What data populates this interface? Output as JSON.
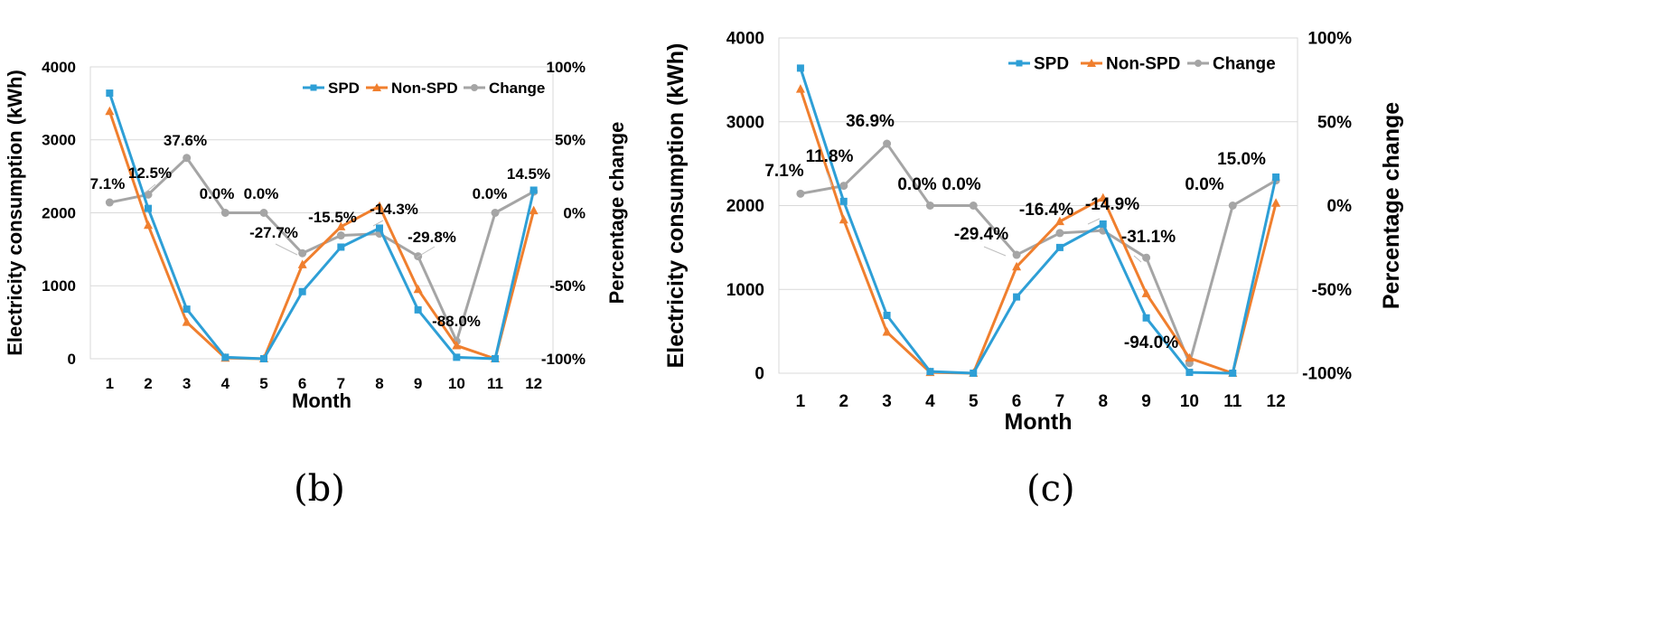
{
  "chart_data": [
    {
      "type": "line",
      "panel_label": "(b)",
      "categories": [
        "1",
        "2",
        "3",
        "4",
        "5",
        "6",
        "7",
        "8",
        "9",
        "10",
        "11",
        "12"
      ],
      "xlabel": "Month",
      "ylabel": "Electricity consumption (kWh)",
      "ylabel_right": "Percentage change",
      "ylim": [
        0,
        4000
      ],
      "y_ticks": [
        "0",
        "1000",
        "2000",
        "3000",
        "4000"
      ],
      "ylim_right": [
        -100,
        100
      ],
      "y_right_ticks": [
        "-100%",
        "-50%",
        "0%",
        "50%",
        "100%"
      ],
      "legend": [
        "SPD",
        "Non-SPD",
        "Change"
      ],
      "series": [
        {
          "name": "SPD",
          "axis": "left",
          "marker": "square",
          "color": "#2e9fd6",
          "values": [
            3640,
            2060,
            680,
            20,
            0,
            920,
            1530,
            1790,
            670,
            20,
            0,
            2310
          ]
        },
        {
          "name": "Non-SPD",
          "axis": "left",
          "marker": "triangle",
          "color": "#f07f2e",
          "values": [
            3390,
            1830,
            500,
            10,
            0,
            1290,
            1810,
            2090,
            950,
            180,
            0,
            2030
          ]
        },
        {
          "name": "Change",
          "axis": "right",
          "marker": "circle",
          "color": "#a5a5a5",
          "values": [
            7.1,
            12.5,
            37.6,
            0.0,
            0.0,
            -27.7,
            -15.5,
            -14.3,
            -29.8,
            -88.0,
            0.0,
            14.5
          ]
        }
      ],
      "annotations": [
        "7.1%",
        "12.5%",
        "37.6%",
        "0.0%",
        "0.0%",
        "-27.7%",
        "-15.5%",
        "-14.3%",
        "-29.8%",
        "-88.0%",
        "0.0%",
        "14.5%"
      ]
    },
    {
      "type": "line",
      "panel_label": "(c)",
      "categories": [
        "1",
        "2",
        "3",
        "4",
        "5",
        "6",
        "7",
        "8",
        "9",
        "10",
        "11",
        "12"
      ],
      "xlabel": "Month",
      "ylabel": "Electricity consumption (kWh)",
      "ylabel_right": "Percentage change",
      "ylim": [
        0,
        4000
      ],
      "y_ticks": [
        "0",
        "1000",
        "2000",
        "3000",
        "4000"
      ],
      "ylim_right": [
        -100,
        100
      ],
      "y_right_ticks": [
        "-100%",
        "-50%",
        "0%",
        "50%",
        "100%"
      ],
      "legend": [
        "SPD",
        "Non-SPD",
        "Change"
      ],
      "series": [
        {
          "name": "SPD",
          "axis": "left",
          "marker": "square",
          "color": "#2e9fd6",
          "values": [
            3640,
            2050,
            690,
            20,
            0,
            910,
            1500,
            1780,
            660,
            10,
            0,
            2340
          ]
        },
        {
          "name": "Non-SPD",
          "axis": "left",
          "marker": "triangle",
          "color": "#f07f2e",
          "values": [
            3390,
            1830,
            490,
            10,
            0,
            1270,
            1810,
            2090,
            950,
            180,
            0,
            2030
          ]
        },
        {
          "name": "Change",
          "axis": "right",
          "marker": "circle",
          "color": "#a5a5a5",
          "values": [
            7.1,
            11.8,
            36.9,
            0.0,
            0.0,
            -29.4,
            -16.4,
            -14.9,
            -31.1,
            -94.0,
            0.0,
            15.0
          ]
        }
      ],
      "annotations": [
        "7.1%",
        "11.8%",
        "36.9%",
        "0.0%",
        "0.0%",
        "-29.4%",
        "-16.4%",
        "-14.9%",
        "-31.1%",
        "-94.0%",
        "0.0%",
        "15.0%"
      ]
    }
  ]
}
